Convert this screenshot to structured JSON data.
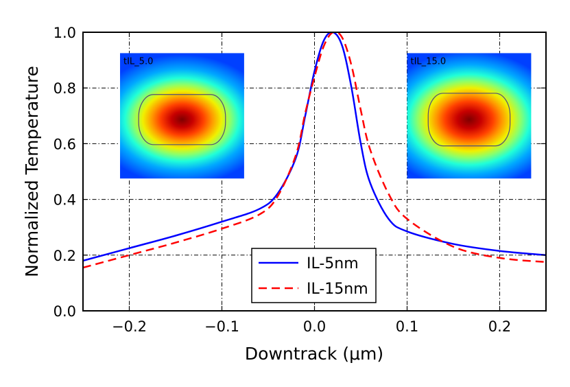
{
  "chart_data": {
    "type": "line",
    "title": "",
    "xlabel": "Downtrack (μm)",
    "ylabel": "Normalized Temperature",
    "xlim": [
      -0.25,
      0.25
    ],
    "ylim": [
      0.0,
      1.0
    ],
    "grid": true,
    "grid_style": "dash-dot",
    "x_ticks": [
      -0.2,
      -0.1,
      0.0,
      0.1,
      0.2
    ],
    "x_tick_labels": [
      "−0.2",
      "−0.1",
      "0.0",
      "0.1",
      "0.2"
    ],
    "y_ticks": [
      0.0,
      0.2,
      0.4,
      0.6,
      0.8,
      1.0
    ],
    "y_tick_labels": [
      "0.0",
      "0.2",
      "0.4",
      "0.6",
      "0.8",
      "1.0"
    ],
    "legend_position": "lower-center",
    "series": [
      {
        "name": "IL-5nm",
        "color": "#0000ff",
        "style": "solid",
        "x": [
          -0.25,
          -0.2,
          -0.15,
          -0.1,
          -0.06,
          -0.04,
          -0.02,
          -0.01,
          0.0,
          0.01,
          0.02,
          0.03,
          0.04,
          0.05,
          0.06,
          0.08,
          0.1,
          0.15,
          0.2,
          0.25
        ],
        "y": [
          0.18,
          0.225,
          0.27,
          0.32,
          0.365,
          0.42,
          0.55,
          0.7,
          0.86,
          0.97,
          1.0,
          0.95,
          0.8,
          0.6,
          0.46,
          0.33,
          0.285,
          0.24,
          0.215,
          0.2
        ]
      },
      {
        "name": "IL-15nm",
        "color": "#ff0000",
        "style": "dashed",
        "x": [
          -0.25,
          -0.2,
          -0.15,
          -0.1,
          -0.06,
          -0.04,
          -0.02,
          -0.01,
          0.0,
          0.01,
          0.02,
          0.03,
          0.04,
          0.05,
          0.06,
          0.08,
          0.1,
          0.15,
          0.2,
          0.25
        ],
        "y": [
          0.155,
          0.2,
          0.245,
          0.295,
          0.345,
          0.41,
          0.56,
          0.71,
          0.84,
          0.95,
          1.0,
          0.98,
          0.88,
          0.72,
          0.58,
          0.42,
          0.33,
          0.23,
          0.19,
          0.175
        ]
      }
    ],
    "insets": [
      {
        "name": "inset-left",
        "label": "tIL_5.0",
        "anchor_x": -0.21,
        "anchor_y": 0.925,
        "width_dx": 0.134,
        "height_dy": 0.45,
        "melt_rx": 0.35,
        "melt_ry": 0.2
      },
      {
        "name": "inset-right",
        "label": "tIL_15.0",
        "anchor_x": 0.1,
        "anchor_y": 0.925,
        "width_dx": 0.134,
        "height_dy": 0.45,
        "melt_rx": 0.33,
        "melt_ry": 0.21
      }
    ]
  }
}
